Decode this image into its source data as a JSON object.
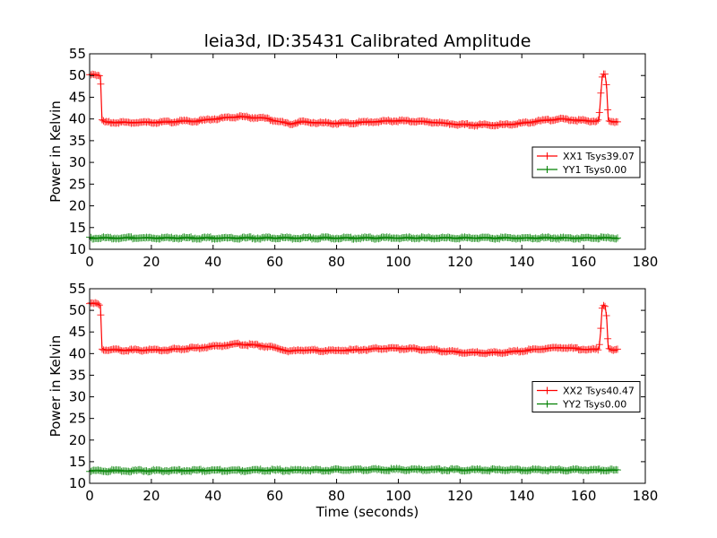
{
  "figure": {
    "title": "leia3d, ID:35431 Calibrated Amplitude",
    "background": "#ffffff"
  },
  "chart_data": [
    {
      "type": "line",
      "title": "leia3d, ID:35431 Calibrated Amplitude",
      "xlabel": "",
      "ylabel": "Power in Kelvin",
      "xlim": [
        0,
        180
      ],
      "ylim": [
        10,
        55
      ],
      "xticks": [
        "0",
        "20",
        "40",
        "60",
        "80",
        "100",
        "120",
        "140",
        "160",
        "180"
      ],
      "yticks": [
        "10",
        "15",
        "20",
        "25",
        "30",
        "35",
        "40",
        "45",
        "50",
        "55"
      ],
      "grid": false,
      "legend_position": "center-right",
      "marker": "+",
      "series": [
        {
          "name": "XX1 Tsys39.07",
          "color": "#ff0000",
          "x": [
            0,
            1,
            2,
            3,
            3.5,
            4,
            4.5,
            5,
            10,
            15,
            20,
            25,
            30,
            35,
            40,
            45,
            48,
            50,
            55,
            58,
            60,
            62,
            64,
            65,
            66,
            68,
            70,
            75,
            80,
            85,
            90,
            95,
            100,
            105,
            110,
            115,
            120,
            125,
            130,
            135,
            140,
            145,
            150,
            152,
            155,
            160,
            164,
            165,
            165.5,
            166,
            166.5,
            167,
            167.5,
            168,
            169,
            170,
            171
          ],
          "y": [
            50.2,
            50.3,
            50.2,
            50.1,
            49.8,
            39.8,
            39.5,
            39.3,
            39.2,
            39.2,
            39.2,
            39.3,
            39.5,
            39.5,
            40.0,
            40.3,
            40.5,
            40.4,
            40.3,
            40.0,
            39.6,
            39.3,
            39.0,
            38.8,
            39.0,
            39.3,
            39.3,
            39.1,
            39.0,
            39.1,
            39.3,
            39.5,
            39.6,
            39.5,
            39.3,
            39.0,
            38.7,
            38.6,
            38.6,
            38.7,
            39.0,
            39.5,
            39.8,
            40.0,
            39.9,
            39.6,
            39.5,
            39.7,
            44.8,
            49.5,
            50.3,
            50.2,
            47.2,
            39.8,
            39.4,
            39.4,
            39.4
          ]
        },
        {
          "name": "YY1 Tsys0.00",
          "color": "#008000",
          "x": [
            0,
            20,
            40,
            60,
            80,
            100,
            120,
            140,
            160,
            171
          ],
          "y": [
            12.6,
            12.6,
            12.6,
            12.6,
            12.6,
            12.6,
            12.6,
            12.6,
            12.6,
            12.6
          ]
        }
      ]
    },
    {
      "type": "line",
      "title": "",
      "xlabel": "Time (seconds)",
      "ylabel": "Power in Kelvin",
      "xlim": [
        0,
        180
      ],
      "ylim": [
        10,
        55
      ],
      "xticks": [
        "0",
        "20",
        "40",
        "60",
        "80",
        "100",
        "120",
        "140",
        "160",
        "180"
      ],
      "yticks": [
        "10",
        "15",
        "20",
        "25",
        "30",
        "35",
        "40",
        "45",
        "50",
        "55"
      ],
      "grid": false,
      "legend_position": "center-right",
      "marker": "+",
      "series": [
        {
          "name": "XX2 Tsys40.47",
          "color": "#ff0000",
          "x": [
            0,
            1,
            2,
            3,
            3.5,
            4,
            4.5,
            5,
            10,
            15,
            20,
            25,
            30,
            35,
            40,
            45,
            48,
            50,
            55,
            58,
            60,
            62,
            64,
            65,
            66,
            68,
            70,
            75,
            80,
            85,
            90,
            95,
            100,
            105,
            110,
            115,
            120,
            125,
            130,
            135,
            140,
            145,
            150,
            152,
            155,
            160,
            164,
            165,
            165.5,
            166,
            166.5,
            167,
            167.5,
            168,
            169,
            170,
            171
          ],
          "y": [
            51.5,
            51.6,
            51.5,
            51.4,
            51.0,
            41.3,
            41.0,
            40.9,
            40.8,
            40.8,
            40.8,
            40.9,
            41.1,
            41.3,
            41.7,
            42.0,
            42.2,
            42.1,
            41.9,
            41.6,
            41.3,
            41.0,
            40.7,
            40.5,
            40.6,
            40.8,
            40.8,
            40.7,
            40.7,
            40.8,
            41.0,
            41.2,
            41.2,
            41.1,
            40.9,
            40.6,
            40.3,
            40.2,
            40.2,
            40.3,
            40.6,
            41.0,
            41.3,
            41.4,
            41.3,
            41.0,
            40.9,
            41.1,
            44.8,
            50.6,
            51.3,
            51.0,
            48.3,
            41.2,
            40.8,
            40.7,
            40.8
          ]
        },
        {
          "name": "YY2 Tsys0.00",
          "color": "#008000",
          "x": [
            0,
            20,
            40,
            60,
            80,
            100,
            120,
            140,
            160,
            171
          ],
          "y": [
            12.9,
            12.9,
            13.0,
            13.0,
            13.1,
            13.2,
            13.1,
            13.1,
            13.1,
            13.0
          ]
        }
      ]
    }
  ]
}
